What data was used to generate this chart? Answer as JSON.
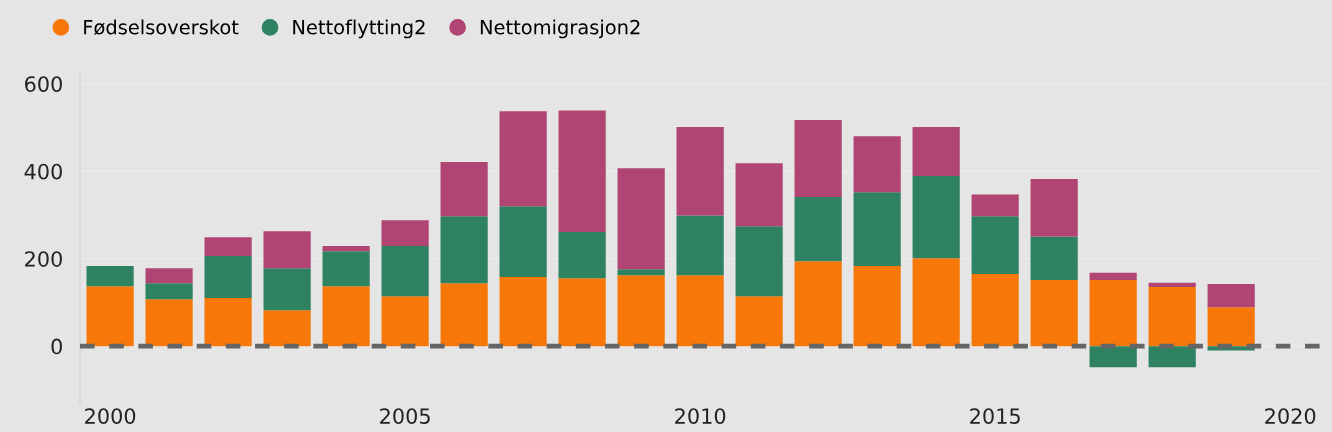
{
  "chart_data": {
    "type": "bar",
    "stacked": true,
    "x": [
      2000,
      2001,
      2002,
      2003,
      2004,
      2005,
      2006,
      2007,
      2008,
      2009,
      2010,
      2011,
      2012,
      2013,
      2014,
      2015,
      2016,
      2017,
      2018,
      2019
    ],
    "series": [
      {
        "name": "Fødselsoverskot",
        "color": "#f77708",
        "values": [
          137,
          107,
          110,
          82,
          137,
          114,
          144,
          158,
          155,
          162,
          162,
          114,
          194,
          183,
          201,
          165,
          151,
          151,
          135,
          89
        ]
      },
      {
        "name": "Nettoflytting2",
        "color": "#2e8262",
        "values": [
          46,
          37,
          96,
          96,
          80,
          115,
          153,
          162,
          106,
          14,
          137,
          160,
          147,
          169,
          188,
          132,
          100,
          -48,
          -48,
          -10
        ]
      },
      {
        "name": "Nettomigrasjon2",
        "color": "#b04472",
        "values": [
          0,
          34,
          43,
          85,
          12,
          59,
          124,
          217,
          278,
          231,
          202,
          144,
          176,
          128,
          112,
          50,
          131,
          17,
          10,
          53
        ]
      }
    ],
    "xlim": [
      1999.49,
      2020.59
    ],
    "xticks": [
      2000,
      2005,
      2010,
      2015,
      2020
    ],
    "ylim": [
      -130,
      620
    ],
    "yticks": [
      0,
      200,
      400,
      600
    ],
    "ref_lines": [
      {
        "axis": "y",
        "value": 0,
        "color": "#666666",
        "line_style": "dashed"
      }
    ],
    "grid": "y",
    "legend": "top left"
  }
}
